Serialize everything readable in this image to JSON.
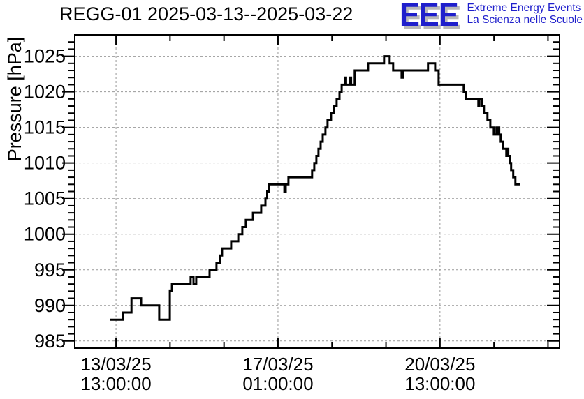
{
  "header": {
    "title": "REGG-01 2025-03-13--2025-03-22"
  },
  "logo": {
    "letters": "EEE",
    "line1": "Extreme Energy Events",
    "line2": "La Scienza nelle Scuole",
    "color": "#1f1fcc",
    "shadow_color": "#b9b9b9"
  },
  "chart_data": {
    "type": "line",
    "style": "step-after",
    "title": "REGG-01 2025-03-13--2025-03-22",
    "xlabel": "",
    "ylabel": "Pressure [hPa]",
    "x_unit": "hours since 2025-03-13 00:00",
    "xlim": [
      -8.4,
      243.0
    ],
    "ylim": [
      984,
      1028
    ],
    "grid": {
      "show": true,
      "style": "dashed",
      "color": "#999999"
    },
    "line_color": "#000000",
    "y_major_ticks": [
      985,
      990,
      995,
      1000,
      1005,
      1010,
      1015,
      1020,
      1025
    ],
    "y_tick_labels": [
      "985",
      "990",
      "995",
      "1000",
      "1005",
      "1010",
      "1015",
      "1020",
      "1025"
    ],
    "y_minor_step": 1,
    "x_major_ticks": [
      {
        "t": 13,
        "label_line1": "13/03/25",
        "label_line2": "13:00:00"
      },
      {
        "t": 97,
        "label_line1": "17/03/25",
        "label_line2": "01:00:00"
      },
      {
        "t": 181,
        "label_line1": "20/03/25",
        "label_line2": "13:00:00"
      }
    ],
    "x_minor_ticks": [
      41,
      69,
      125,
      153,
      209,
      237
    ],
    "series": [
      {
        "name": "pressure",
        "points": [
          [
            9.7,
            988
          ],
          [
            16.6,
            989
          ],
          [
            21.0,
            991
          ],
          [
            26.0,
            990
          ],
          [
            35.4,
            988
          ],
          [
            40.9,
            992
          ],
          [
            42.0,
            993
          ],
          [
            51.7,
            994
          ],
          [
            53.2,
            993
          ],
          [
            54.6,
            994
          ],
          [
            61.5,
            995
          ],
          [
            65.1,
            996
          ],
          [
            66.9,
            997
          ],
          [
            68.0,
            998
          ],
          [
            72.7,
            999
          ],
          [
            76.4,
            1000
          ],
          [
            78.5,
            1001
          ],
          [
            80.3,
            1002
          ],
          [
            84.0,
            1003
          ],
          [
            88.3,
            1004
          ],
          [
            90.5,
            1005
          ],
          [
            91.4,
            1006
          ],
          [
            92.3,
            1007
          ],
          [
            100.3,
            1006
          ],
          [
            101.0,
            1007
          ],
          [
            102.4,
            1008
          ],
          [
            114.7,
            1009
          ],
          [
            115.8,
            1010
          ],
          [
            116.9,
            1011
          ],
          [
            118.0,
            1012
          ],
          [
            119.1,
            1013
          ],
          [
            120.2,
            1014
          ],
          [
            121.6,
            1015
          ],
          [
            122.7,
            1016
          ],
          [
            124.5,
            1017
          ],
          [
            126.0,
            1018
          ],
          [
            127.4,
            1019
          ],
          [
            128.9,
            1020
          ],
          [
            130.0,
            1021
          ],
          [
            131.8,
            1022
          ],
          [
            132.3,
            1021
          ],
          [
            134.3,
            1022
          ],
          [
            134.9,
            1021
          ],
          [
            136.8,
            1023
          ],
          [
            143.7,
            1024
          ],
          [
            152.0,
            1025
          ],
          [
            154.9,
            1024
          ],
          [
            156.7,
            1023
          ],
          [
            161.1,
            1022
          ],
          [
            161.7,
            1023
          ],
          [
            174.8,
            1024
          ],
          [
            178.5,
            1023
          ],
          [
            180.3,
            1021
          ],
          [
            193.3,
            1020
          ],
          [
            194.4,
            1019
          ],
          [
            200.9,
            1018
          ],
          [
            201.4,
            1019
          ],
          [
            202.7,
            1018
          ],
          [
            203.8,
            1017
          ],
          [
            205.6,
            1016
          ],
          [
            207.1,
            1015
          ],
          [
            208.9,
            1014
          ],
          [
            210.3,
            1015
          ],
          [
            210.8,
            1014
          ],
          [
            211.2,
            1015
          ],
          [
            211.7,
            1014
          ],
          [
            212.5,
            1013
          ],
          [
            213.6,
            1012
          ],
          [
            215.4,
            1011
          ],
          [
            215.9,
            1012
          ],
          [
            216.4,
            1011
          ],
          [
            217.2,
            1010
          ],
          [
            217.9,
            1009
          ],
          [
            219.0,
            1008
          ],
          [
            220.1,
            1007
          ],
          [
            222.6,
            1007
          ]
        ]
      }
    ]
  }
}
